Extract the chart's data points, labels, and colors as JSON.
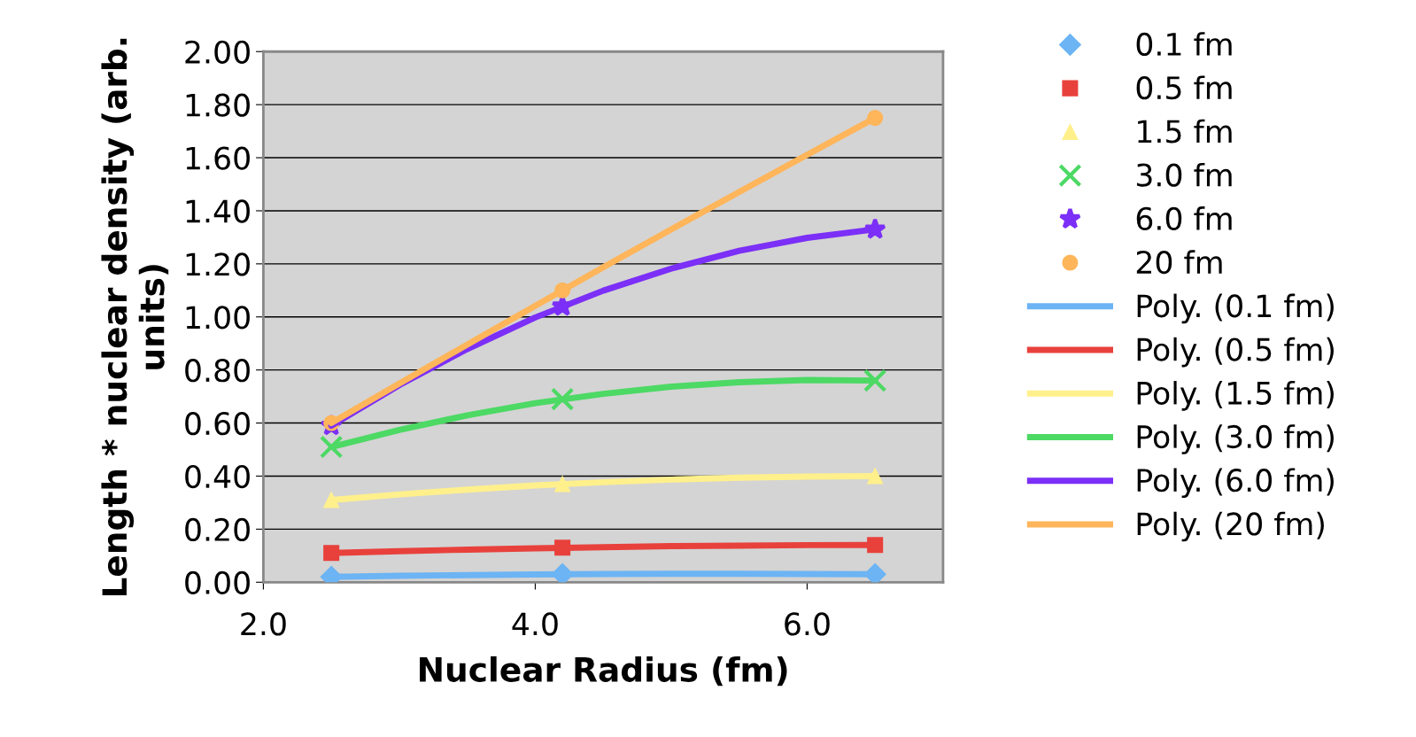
{
  "chart_data": {
    "type": "scatter",
    "xlabel": "Nuclear Radius (fm)",
    "ylabel": "Length * nuclear density (arb. units)",
    "xlim": [
      2,
      7
    ],
    "xticks": [
      {
        "value": 2,
        "label": "2.0"
      },
      {
        "value": 4,
        "label": "4.0"
      },
      {
        "value": 6,
        "label": "6.0"
      }
    ],
    "ylim": [
      0,
      2
    ],
    "yticks": [
      {
        "value": 0,
        "label": "0.00"
      },
      {
        "value": 0.2,
        "label": "0.20"
      },
      {
        "value": 0.4,
        "label": "0.40"
      },
      {
        "value": 0.6,
        "label": "0.60"
      },
      {
        "value": 0.8,
        "label": "0.80"
      },
      {
        "value": 1.0,
        "label": "1.00"
      },
      {
        "value": 1.2,
        "label": "1.20"
      },
      {
        "value": 1.4,
        "label": "1.40"
      },
      {
        "value": 1.6,
        "label": "1.60"
      },
      {
        "value": 1.8,
        "label": "1.80"
      },
      {
        "value": 2.0,
        "label": "2.00"
      }
    ],
    "grid": "y",
    "legend": "right",
    "x": [
      2.5,
      4.2,
      6.5
    ],
    "series": [
      {
        "name": "0.1 fm",
        "marker": "diamond",
        "color": "#6cb4f4",
        "values": [
          0.02,
          0.03,
          0.03
        ]
      },
      {
        "name": "0.5 fm",
        "marker": "square",
        "color": "#e8413c",
        "values": [
          0.11,
          0.13,
          0.14
        ]
      },
      {
        "name": "1.5 fm",
        "marker": "triangle",
        "color": "#fff08c",
        "values": [
          0.31,
          0.37,
          0.4
        ]
      },
      {
        "name": "3.0 fm",
        "marker": "cross",
        "color": "#4cd964",
        "values": [
          0.51,
          0.69,
          0.76
        ]
      },
      {
        "name": "6.0 fm",
        "marker": "star",
        "color": "#7b2ff7",
        "values": [
          0.59,
          1.04,
          1.33
        ]
      },
      {
        "name": "20 fm",
        "marker": "circle",
        "color": "#ffb55a",
        "values": [
          0.6,
          1.1,
          1.75
        ]
      },
      {
        "name": "Poly. (0.1 fm)",
        "type": "line",
        "marker": "none",
        "line_style": "solid",
        "color": "#6cb4f4",
        "x": [
          2.5,
          3.0,
          3.5,
          4.0,
          4.5,
          5.0,
          5.5,
          6.0,
          6.5
        ],
        "values": [
          0.02,
          0.024,
          0.027,
          0.029,
          0.031,
          0.032,
          0.032,
          0.031,
          0.03
        ]
      },
      {
        "name": "Poly. (0.5 fm)",
        "type": "line",
        "marker": "none",
        "line_style": "solid",
        "color": "#e8413c",
        "x": [
          2.5,
          3.0,
          3.5,
          4.0,
          4.5,
          5.0,
          5.5,
          6.0,
          6.5
        ],
        "values": [
          0.11,
          0.117,
          0.123,
          0.128,
          0.132,
          0.136,
          0.138,
          0.14,
          0.14
        ]
      },
      {
        "name": "Poly. (1.5 fm)",
        "type": "line",
        "marker": "none",
        "line_style": "solid",
        "color": "#fff08c",
        "x": [
          2.5,
          3.0,
          3.5,
          4.0,
          4.5,
          5.0,
          5.5,
          6.0,
          6.5
        ],
        "values": [
          0.31,
          0.331,
          0.349,
          0.365,
          0.377,
          0.387,
          0.394,
          0.398,
          0.4
        ]
      },
      {
        "name": "Poly. (3.0 fm)",
        "type": "line",
        "marker": "none",
        "line_style": "solid",
        "color": "#4cd964",
        "x": [
          2.5,
          3.0,
          3.5,
          4.0,
          4.5,
          5.0,
          5.5,
          6.0,
          6.5
        ],
        "values": [
          0.51,
          0.574,
          0.629,
          0.675,
          0.71,
          0.737,
          0.754,
          0.762,
          0.76
        ]
      },
      {
        "name": "Poly. (6.0 fm)",
        "type": "line",
        "marker": "none",
        "line_style": "solid",
        "color": "#7b2ff7",
        "x": [
          2.5,
          3.0,
          3.5,
          4.0,
          4.5,
          5.0,
          5.5,
          6.0,
          6.5
        ],
        "values": [
          0.59,
          0.743,
          0.879,
          0.998,
          1.099,
          1.182,
          1.249,
          1.298,
          1.33
        ]
      },
      {
        "name": "Poly. (20 fm)",
        "type": "line",
        "marker": "none",
        "line_style": "solid",
        "color": "#ffb55a",
        "x": [
          2.5,
          3.0,
          3.5,
          4.0,
          4.5,
          5.0,
          5.5,
          6.0,
          6.5
        ],
        "values": [
          0.6,
          0.749,
          0.896,
          1.042,
          1.187,
          1.33,
          1.471,
          1.611,
          1.75
        ]
      }
    ]
  }
}
